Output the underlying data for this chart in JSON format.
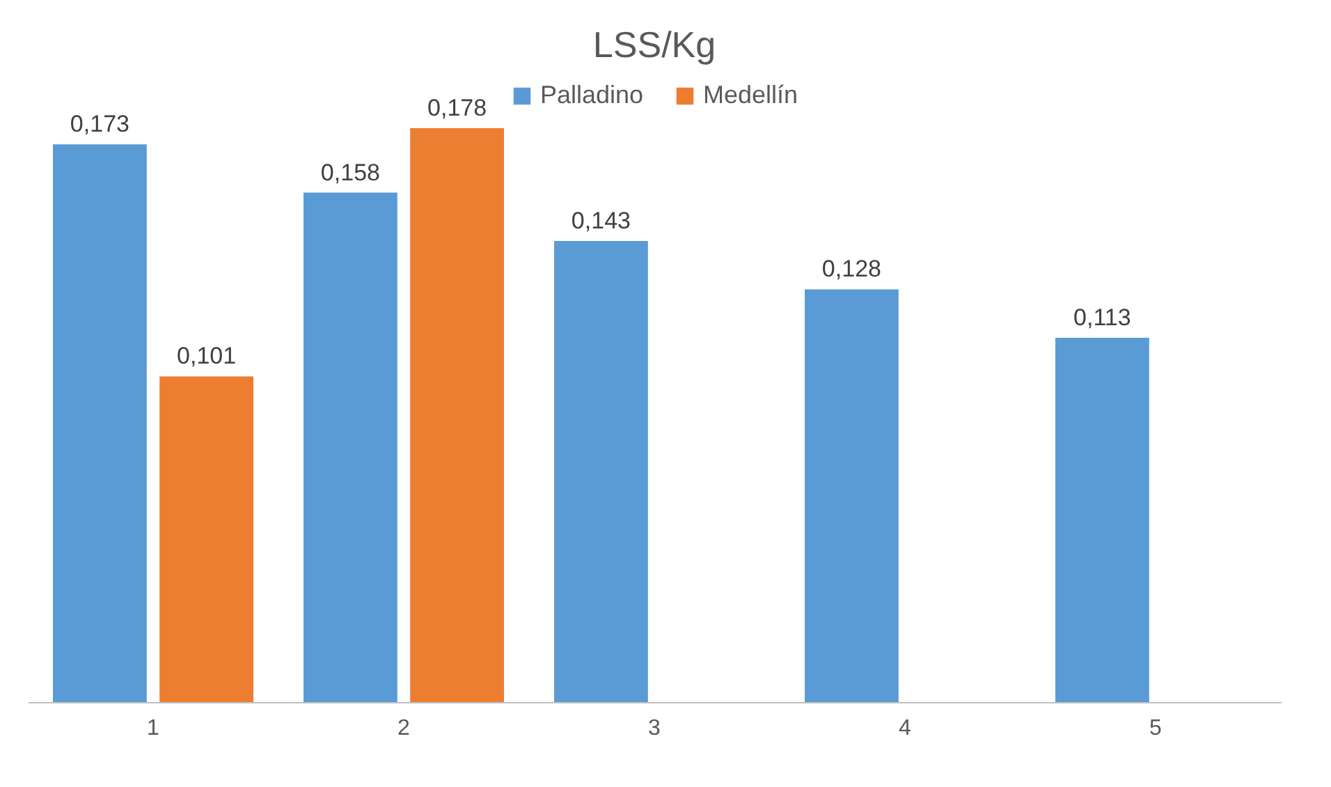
{
  "chart_data": {
    "type": "bar",
    "title": "LSS/Kg",
    "categories": [
      "1",
      "2",
      "3",
      "4",
      "5"
    ],
    "series": [
      {
        "name": "Palladino",
        "color": "#5b9bd5",
        "values": [
          0.173,
          0.158,
          0.143,
          0.128,
          0.113
        ],
        "value_labels": [
          "0,173",
          "0,158",
          "0,143",
          "0,128",
          "0,113"
        ]
      },
      {
        "name": "Medellín",
        "color": "#ed7d31",
        "values": [
          0.101,
          0.178,
          null,
          null,
          null
        ],
        "value_labels": [
          "0,101",
          "0,178",
          null,
          null,
          null
        ]
      }
    ],
    "legend": "top",
    "grid": false
  }
}
